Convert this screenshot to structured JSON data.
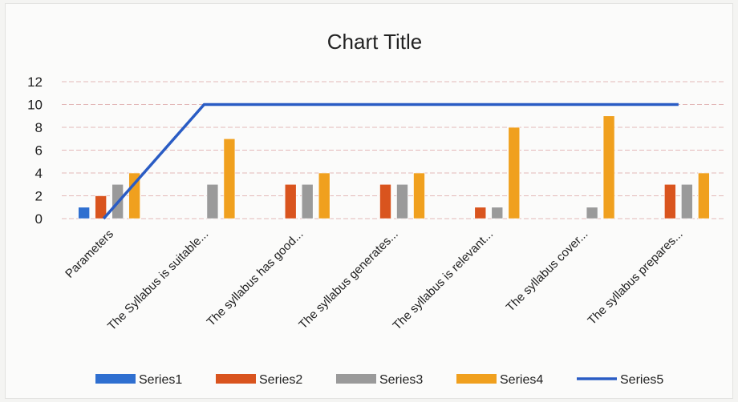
{
  "chart_data": {
    "type": "bar",
    "title": "Chart Title",
    "categories": [
      "Parameters",
      "The Syllabus is suitable...",
      "The syllabus has good...",
      "The syllabus generates...",
      "The syllabus is relevant...",
      "The syllabus cover...",
      "The syllabus prepares..."
    ],
    "series": [
      {
        "name": "Series1",
        "kind": "bar",
        "color": "#2f6fd0",
        "values": [
          1,
          null,
          null,
          null,
          null,
          null,
          null
        ]
      },
      {
        "name": "Series2",
        "kind": "bar",
        "color": "#d9541e",
        "values": [
          2,
          null,
          3,
          3,
          1,
          null,
          3
        ]
      },
      {
        "name": "Series3",
        "kind": "bar",
        "color": "#9a9a9a",
        "values": [
          3,
          3,
          3,
          3,
          1,
          1,
          3
        ]
      },
      {
        "name": "Series4",
        "kind": "bar",
        "color": "#f0a01e",
        "values": [
          4,
          7,
          4,
          4,
          8,
          9,
          4
        ]
      },
      {
        "name": "Series5",
        "kind": "line",
        "color": "#2a5cc4",
        "values": [
          0,
          10,
          10,
          10,
          10,
          10,
          10
        ]
      }
    ],
    "yticks": [
      0,
      2,
      4,
      6,
      8,
      10,
      12
    ],
    "ylim": [
      0,
      12
    ],
    "grid": true,
    "legend": "bottom"
  }
}
